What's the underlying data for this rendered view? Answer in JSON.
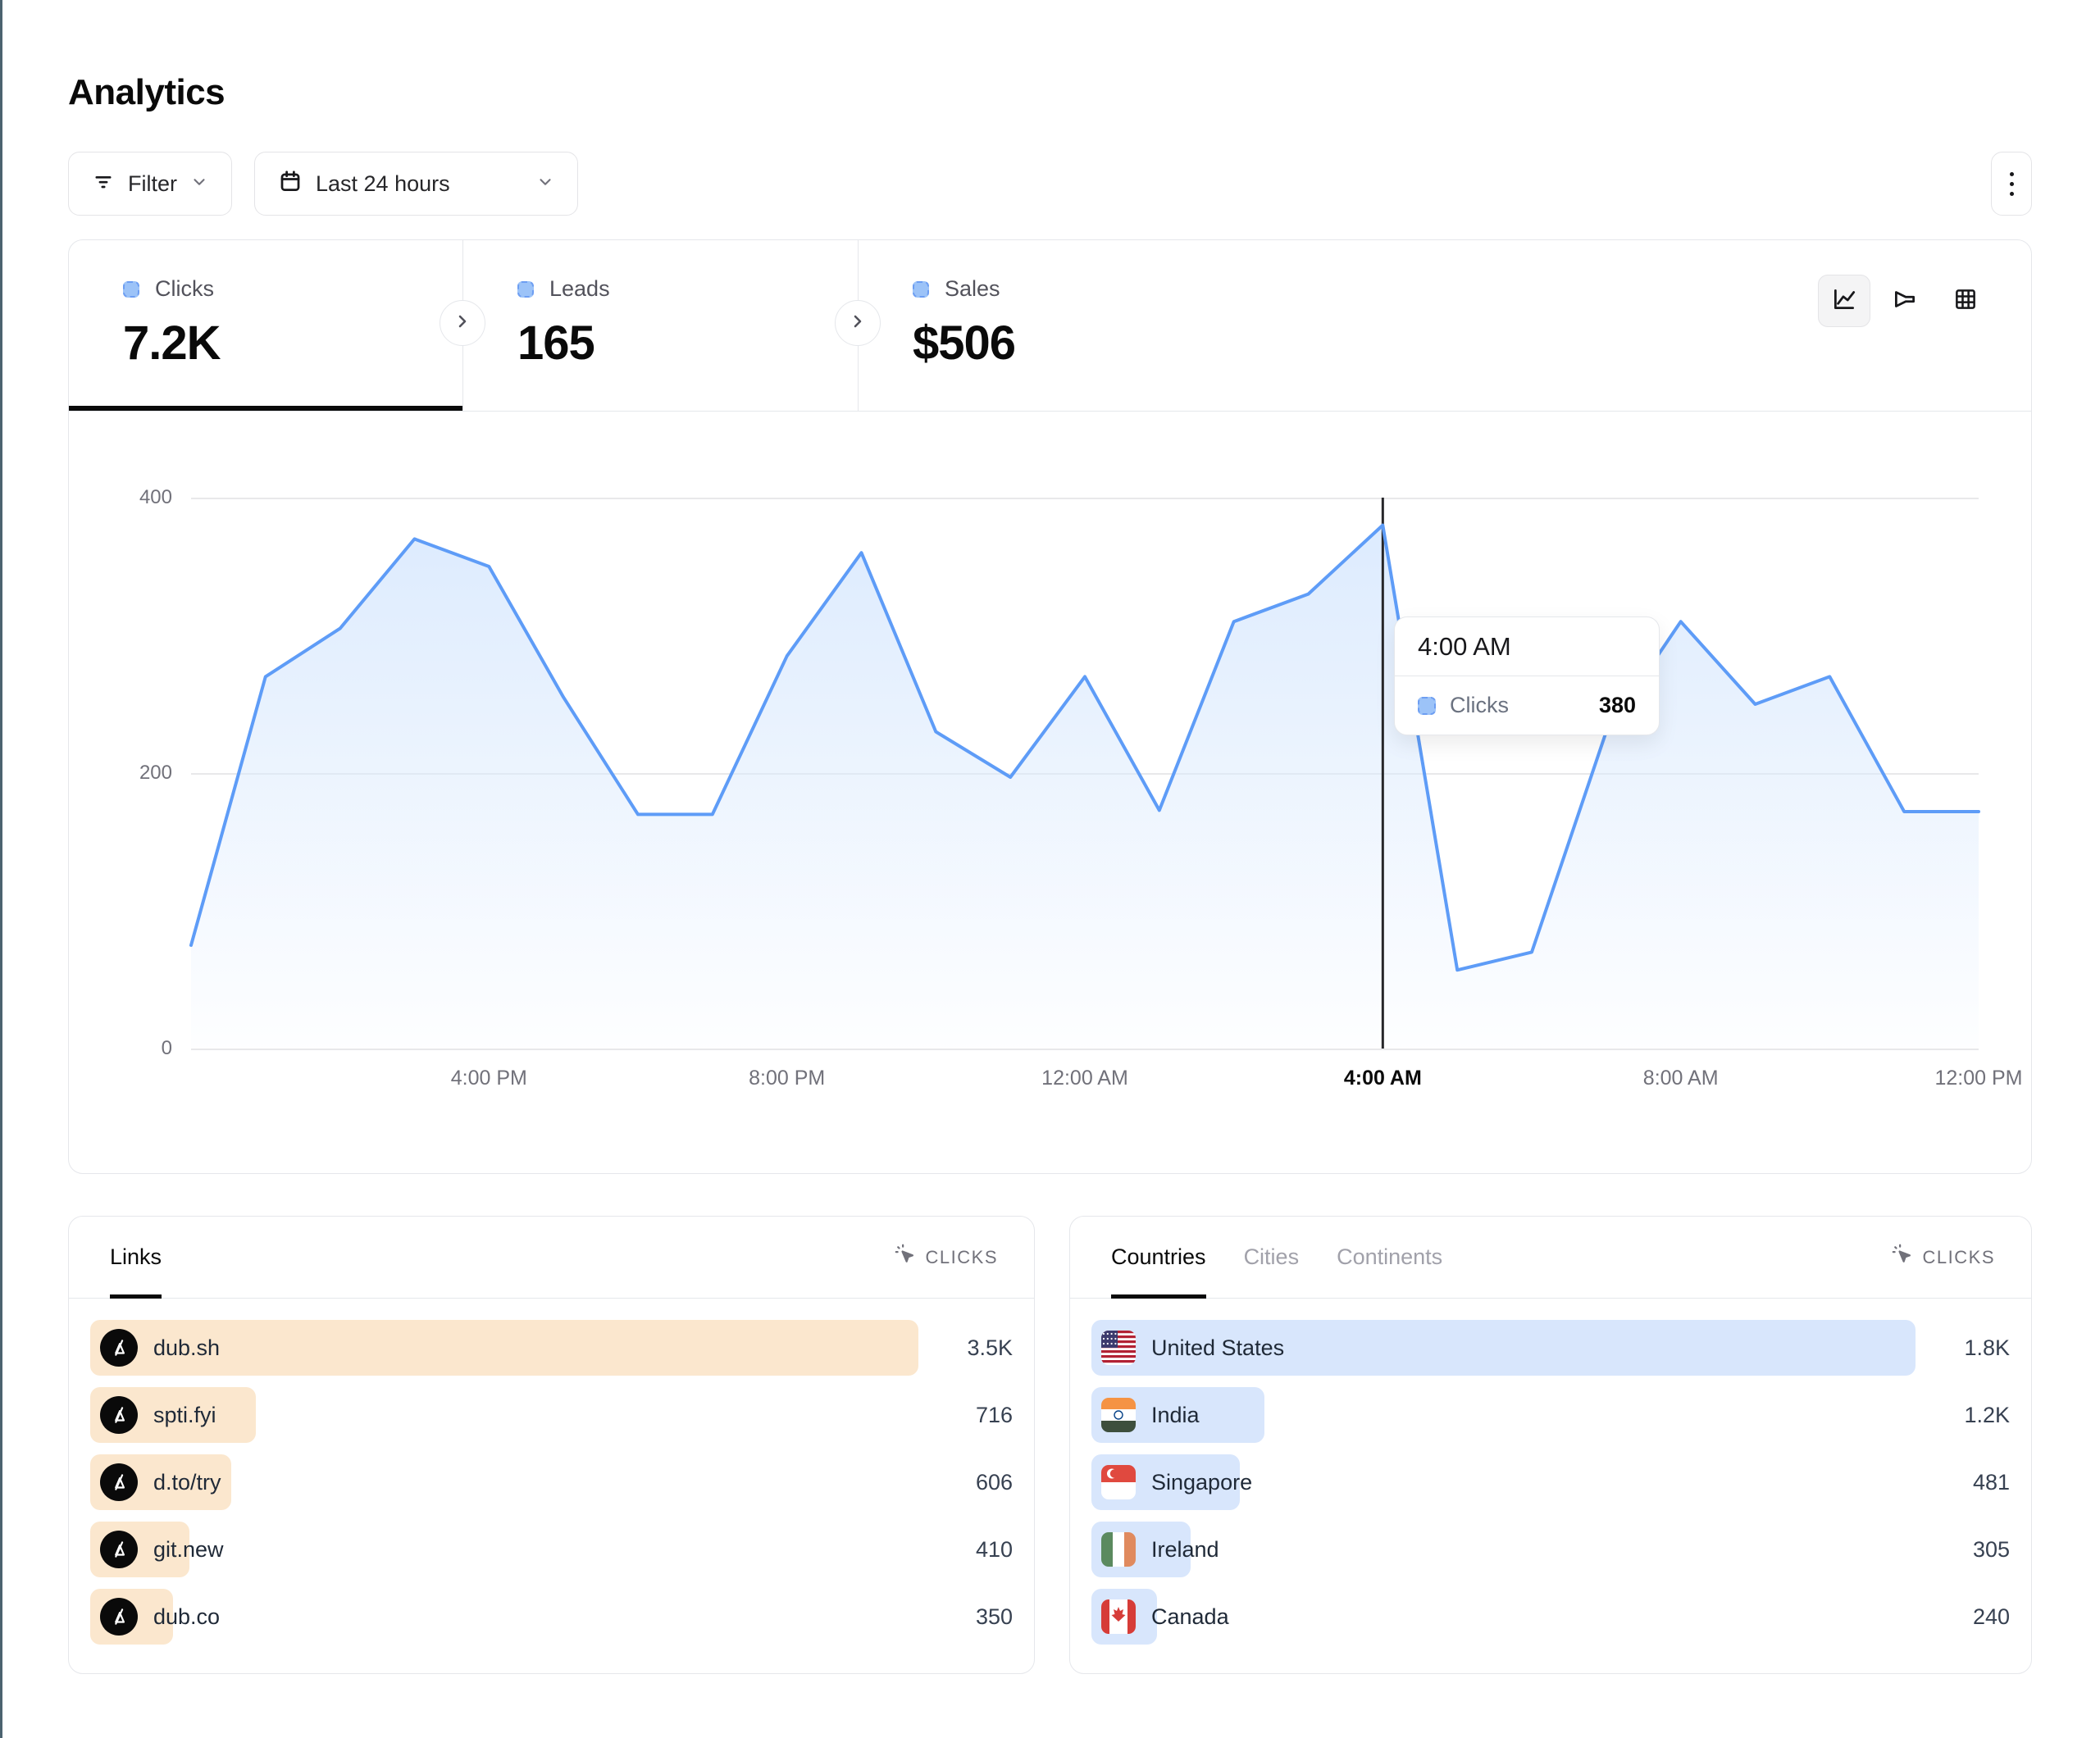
{
  "page": {
    "title": "Analytics"
  },
  "toolbar": {
    "filter_label": "Filter",
    "date_label": "Last 24 hours",
    "icons": [
      "filter-lines-icon",
      "calendar-icon",
      "chevron-down-icon",
      "kebab-menu-icon"
    ]
  },
  "stats": {
    "tabs": [
      {
        "label": "Clicks",
        "value": "7.2K",
        "active": true
      },
      {
        "label": "Leads",
        "value": "165",
        "active": false
      },
      {
        "label": "Sales",
        "value": "$506",
        "active": false
      }
    ]
  },
  "chart_switcher": {
    "options": [
      "line-chart",
      "funnel-chart",
      "table-grid"
    ],
    "active": "line-chart"
  },
  "chart_data": {
    "type": "area",
    "title": "Clicks over last 24 hours",
    "x": [
      "12:00 PM",
      "1:00 PM",
      "2:00 PM",
      "3:00 PM",
      "4:00 PM",
      "5:00 PM",
      "6:00 PM",
      "7:00 PM",
      "8:00 PM",
      "9:00 PM",
      "10:00 PM",
      "11:00 PM",
      "12:00 AM",
      "1:00 AM",
      "2:00 AM",
      "3:00 AM",
      "4:00 AM",
      "5:00 AM",
      "6:00 AM",
      "7:00 AM",
      "8:00 AM",
      "9:00 AM",
      "10:00 AM",
      "11:00 AM",
      "12:00 PM"
    ],
    "series": [
      {
        "name": "Clicks",
        "values": [
          75,
          270,
          305,
          370,
          350,
          255,
          170,
          170,
          285,
          360,
          230,
          197,
          270,
          173,
          310,
          330,
          380,
          57,
          70,
          230,
          310,
          250,
          270,
          172,
          172
        ]
      }
    ],
    "xlabel": "",
    "ylabel": "",
    "ylim": [
      0,
      400
    ],
    "yticks": [
      0,
      200,
      400
    ],
    "xticks": [
      "4:00 PM",
      "8:00 PM",
      "12:00 AM",
      "4:00 AM",
      "8:00 AM",
      "12:00 PM"
    ],
    "highlight_xtick": "4:00 AM",
    "grid": "horizontal",
    "legend_position": "none",
    "line_color": "#5e9cf7",
    "fill_color": "#dbeafe",
    "crosshair_color": "#27272a"
  },
  "tooltip": {
    "time": "4:00 AM",
    "series_label": "Clicks",
    "value": "380"
  },
  "links_panel": {
    "tab_label": "Links",
    "metric_label": "CLICKS",
    "bar_color": "#fbe7ce",
    "rows": [
      {
        "label": "dub.sh",
        "value": "3.5K",
        "pct": 100
      },
      {
        "label": "spti.fyi",
        "value": "716",
        "pct": 20
      },
      {
        "label": "d.to/try",
        "value": "606",
        "pct": 17
      },
      {
        "label": "git.new",
        "value": "410",
        "pct": 12
      },
      {
        "label": "dub.co",
        "value": "350",
        "pct": 10
      }
    ]
  },
  "countries_panel": {
    "tabs": [
      {
        "label": "Countries",
        "active": true
      },
      {
        "label": "Cities",
        "active": false
      },
      {
        "label": "Continents",
        "active": false
      }
    ],
    "metric_label": "CLICKS",
    "bar_color": "#d8e6fc",
    "rows": [
      {
        "label": "United States",
        "value": "1.8K",
        "pct": 100,
        "flag": "us"
      },
      {
        "label": "India",
        "value": "1.2K",
        "pct": 21,
        "flag": "in"
      },
      {
        "label": "Singapore",
        "value": "481",
        "pct": 18,
        "flag": "sg"
      },
      {
        "label": "Ireland",
        "value": "305",
        "pct": 12,
        "flag": "ie"
      },
      {
        "label": "Canada",
        "value": "240",
        "pct": 8,
        "flag": "ca"
      }
    ]
  }
}
